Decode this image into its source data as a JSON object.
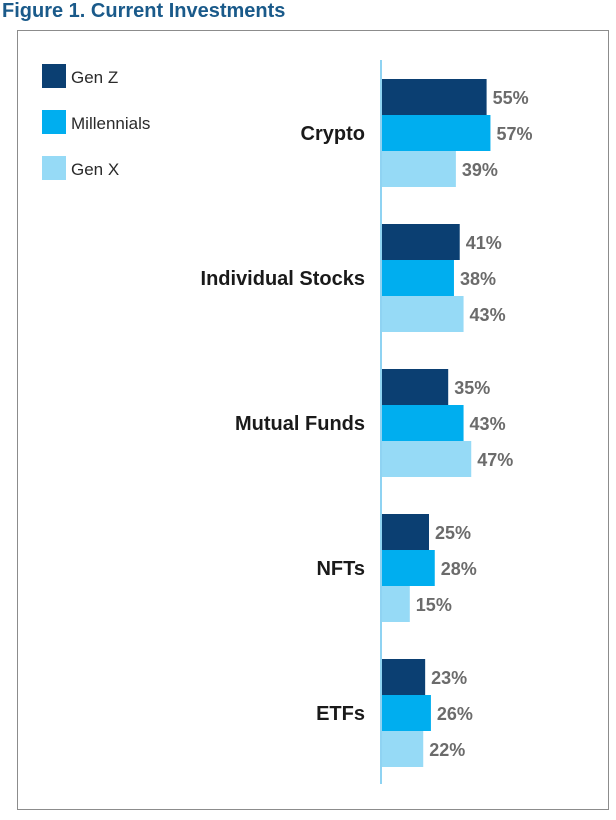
{
  "figure_title": "Figure 1. Current Investments",
  "colors": {
    "Gen Z": "#0b3f72",
    "Millennials": "#00aeef",
    "Gen X": "#96daf6",
    "axis": "#8fd3f2"
  },
  "chart_data": {
    "type": "bar",
    "orientation": "horizontal",
    "title": "Figure 1. Current Investments",
    "categories": [
      "Crypto",
      "Individual Stocks",
      "Mutual Funds",
      "NFTs",
      "ETFs"
    ],
    "series": [
      {
        "name": "Gen Z",
        "values": [
          55,
          41,
          35,
          25,
          23
        ]
      },
      {
        "name": "Millennials",
        "values": [
          57,
          38,
          43,
          28,
          26
        ]
      },
      {
        "name": "Gen X",
        "values": [
          39,
          43,
          47,
          15,
          22
        ]
      }
    ],
    "value_format": "%",
    "legend_position": "top-left",
    "xlabel": "",
    "ylabel": ""
  }
}
